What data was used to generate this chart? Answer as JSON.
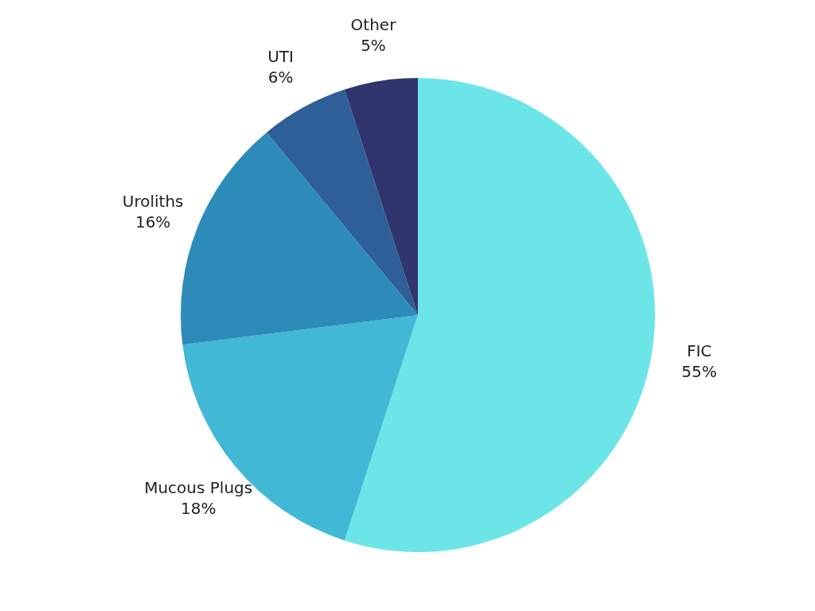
{
  "chart_data": {
    "type": "pie",
    "categories": [
      "FIC",
      "Mucous Plugs",
      "Uroliths",
      "UTI",
      "Other"
    ],
    "values": [
      55,
      18,
      16,
      6,
      5
    ],
    "colors": [
      "#6ce5e8",
      "#41b8d5",
      "#2d8bba",
      "#2f5f98",
      "#31356e"
    ],
    "value_labels": [
      "55%",
      "18%",
      "16%",
      "6%",
      "5%"
    ],
    "legend": false
  }
}
